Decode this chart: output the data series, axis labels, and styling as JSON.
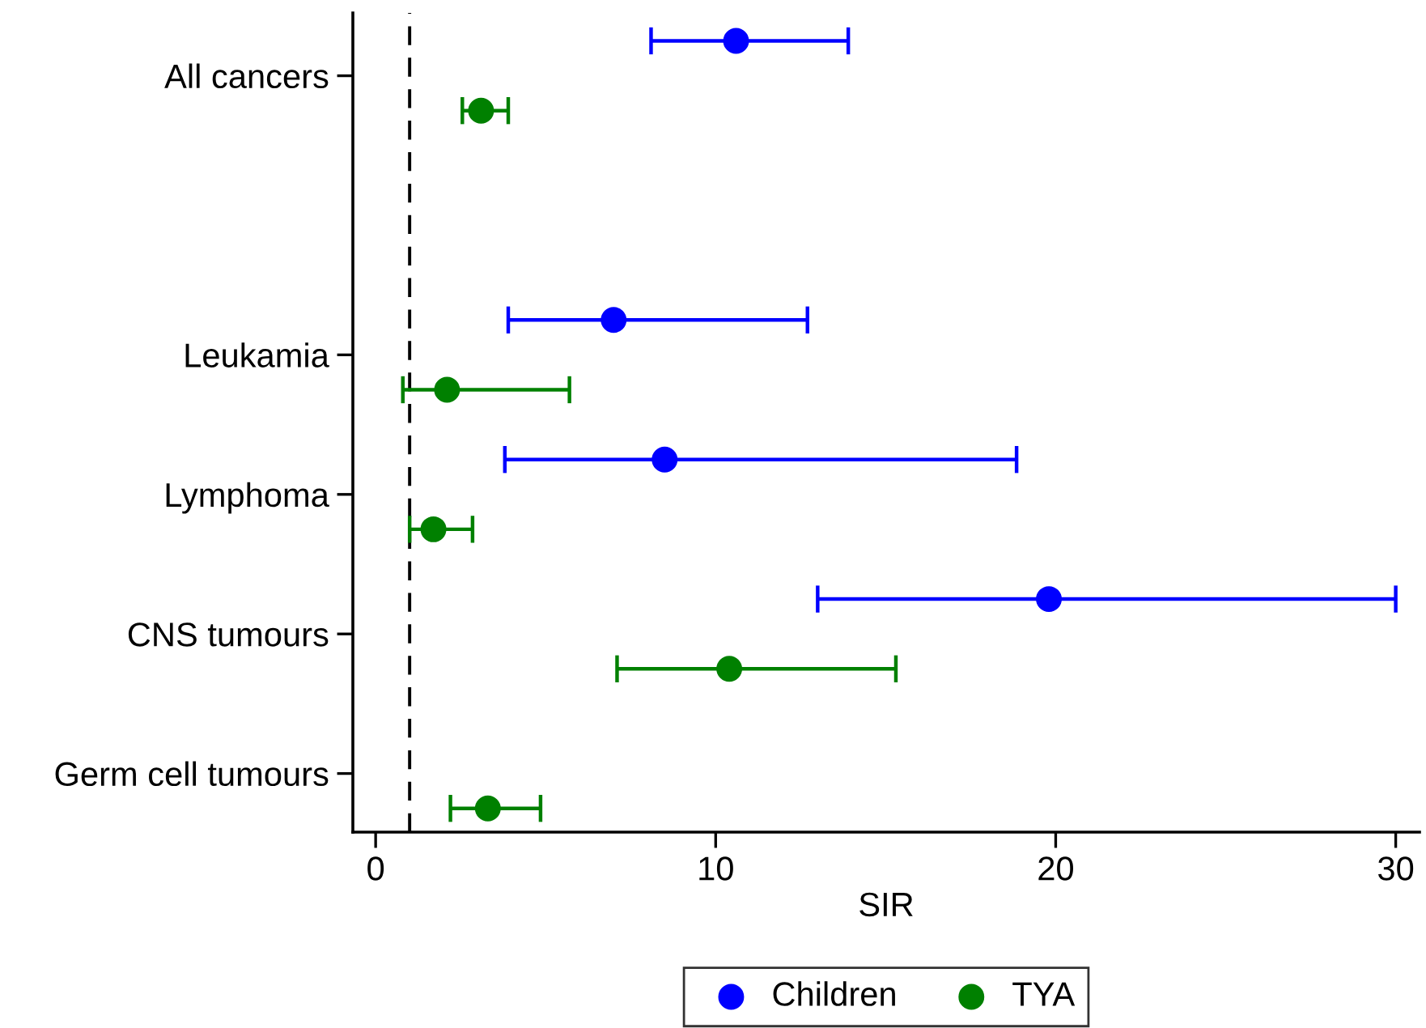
{
  "chart_data": {
    "type": "scatter",
    "orientation": "horizontal",
    "xlabel": "SIR",
    "xlim": [
      -0.67,
      30.7
    ],
    "xticks": [
      0,
      10,
      20,
      30
    ],
    "categories": [
      "All cancers",
      null,
      "Leukamia",
      "Lymphoma",
      "CNS tumours",
      "Germ cell tumours"
    ],
    "series": [
      {
        "name": "Children",
        "color": "#0000ff",
        "values": [
          10.6,
          null,
          7.0,
          8.5,
          19.8,
          null
        ],
        "errors": [
          [
            8.1,
            13.9
          ],
          null,
          [
            3.9,
            12.7
          ],
          [
            3.8,
            18.85
          ],
          [
            13.0,
            30.0
          ],
          null
        ]
      },
      {
        "name": "TYA",
        "color": "#008000",
        "values": [
          3.1,
          null,
          2.1,
          1.7,
          10.4,
          3.3
        ],
        "errors": [
          [
            2.55,
            3.9
          ],
          null,
          [
            0.8,
            5.7
          ],
          [
            1.0,
            2.85
          ],
          [
            7.1,
            15.3
          ],
          [
            2.2,
            4.85
          ]
        ]
      }
    ],
    "ref_lines": [
      {
        "axis": "x",
        "value": 1,
        "line_style": "dashed",
        "color": "#000000"
      }
    ],
    "marker": "circle",
    "grid": false,
    "legend": "bottom"
  }
}
